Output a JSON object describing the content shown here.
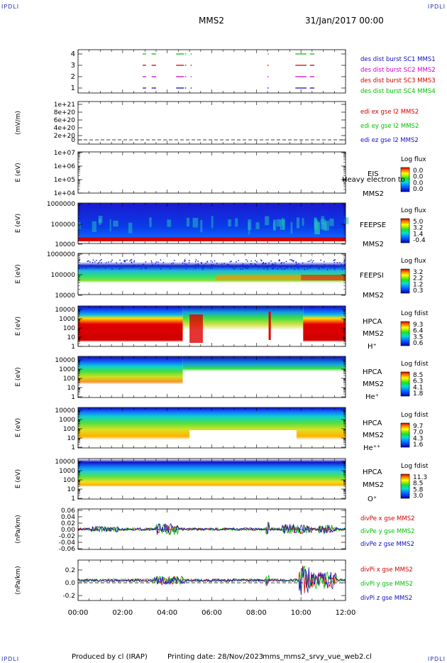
{
  "header": {
    "corner_tl": "IPDLI",
    "corner_tr": "IPDLI",
    "corner_bl": "IPDLI",
    "corner_br": "IPDLI",
    "spacecraft": "MMS2",
    "date": "31/Jan/2017 00:00"
  },
  "footer": {
    "produced_by": "Produced by cl (IRAP)",
    "printing_date": "Printing date: 28/Nov/2023",
    "file": "mms_mms2_srvy_vue_web2.cl"
  },
  "colors": {
    "red": "#d10000",
    "green": "#00c000",
    "blue": "#1010c0",
    "magenta": "#d000d0"
  },
  "chart_data": [
    {
      "type": "line",
      "panel": "burst",
      "yticks": [
        "4",
        "3",
        "2",
        "1"
      ],
      "ylim": [
        0.5,
        4.5
      ],
      "legend": [
        {
          "label": "des dist burst SC1 MMS1",
          "color": "#1010c0"
        },
        {
          "label": "des dist burst SC2 MMS2",
          "color": "#d000d0"
        },
        {
          "label": "des dist burst SC3 MMS3",
          "color": "#d10000"
        },
        {
          "label": "des dist burst SC4 MMS4",
          "color": "#00c000"
        }
      ],
      "segments_hours": [
        [
          2.9,
          3.05
        ],
        [
          3.3,
          3.5
        ],
        [
          4.4,
          4.75
        ],
        [
          4.8,
          4.85
        ],
        [
          5.05,
          5.1
        ],
        [
          8.5,
          8.55
        ],
        [
          9.75,
          10.25
        ],
        [
          10.4,
          10.6
        ]
      ]
    },
    {
      "type": "line",
      "panel": "edi",
      "ylabel": "(mV/m)",
      "yticks": [
        "1e+21",
        "8e+20",
        "6e+20",
        "4e+20",
        "2e+20",
        "0"
      ],
      "legend": [
        {
          "label": "edi ex gse l2 MMS2",
          "color": "#d10000"
        },
        {
          "label": "edi ey gse l2 MMS2",
          "color": "#00c000"
        },
        {
          "label": "edi ez gse l2 MMS2",
          "color": "#1010c0"
        }
      ]
    },
    {
      "type": "heatmap",
      "panel": "eis",
      "ylabel": "E (eV)",
      "yticks": [
        "1e+07",
        "1e+06",
        "1e+05",
        "1e+04"
      ],
      "labels": [
        "EIS",
        "Heavy electron to",
        "MMS2"
      ],
      "cbar_title": "Log flux",
      "cbar_ticks": [
        "0.0",
        "0.0",
        "0.0",
        "0.0"
      ]
    },
    {
      "type": "heatmap",
      "panel": "feepse",
      "ylabel": "E (eV)",
      "yticks": [
        "1000000",
        "100000",
        "10000"
      ],
      "labels": [
        "FEEPSE",
        "MMS2"
      ],
      "cbar_title": "Log flux",
      "cbar_ticks": [
        "5.0",
        "3.2",
        "1.4",
        "-0.4"
      ]
    },
    {
      "type": "heatmap",
      "panel": "feepsi",
      "ylabel": "E (eV)",
      "yticks": [
        "1000000",
        "100000",
        "10000"
      ],
      "labels": [
        "FEEPSI",
        "MMS2"
      ],
      "cbar_title": "Log flux",
      "cbar_ticks": [
        "3.2",
        "2.2",
        "1.2",
        "0.3"
      ]
    },
    {
      "type": "heatmap",
      "panel": "hpca_h",
      "ylabel": "E (eV)",
      "yticks": [
        "10000",
        "1000",
        "100",
        "10",
        "1"
      ],
      "labels": [
        "HPCA",
        "MMS2",
        "H⁺"
      ],
      "cbar_title": "Log fdist",
      "cbar_ticks": [
        "9.3",
        "6.4",
        "3.5",
        "0.6"
      ]
    },
    {
      "type": "heatmap",
      "panel": "hpca_he",
      "ylabel": "E (eV)",
      "yticks": [
        "10000",
        "1000",
        "100",
        "10",
        "1"
      ],
      "labels": [
        "HPCA",
        "MMS2",
        "He⁺"
      ],
      "cbar_title": "Log fdist",
      "cbar_ticks": [
        "8.5",
        "6.3",
        "4.1",
        "1.8"
      ]
    },
    {
      "type": "heatmap",
      "panel": "hpca_hepp",
      "ylabel": "E (eV)",
      "yticks": [
        "10000",
        "1000",
        "100",
        "10",
        "1"
      ],
      "labels": [
        "HPCA",
        "MMS2",
        "He⁺⁺"
      ],
      "cbar_title": "Log fdist",
      "cbar_ticks": [
        "9.7",
        "7.0",
        "4.3",
        "1.6"
      ]
    },
    {
      "type": "heatmap",
      "panel": "hpca_o",
      "ylabel": "E (eV)",
      "yticks": [
        "10000",
        "1000",
        "100",
        "10",
        "1"
      ],
      "labels": [
        "HPCA",
        "MMS2",
        "O⁺"
      ],
      "cbar_title": "Log fdist",
      "cbar_ticks": [
        "11.3",
        "8.5",
        "5.8",
        "3.0"
      ]
    },
    {
      "type": "line",
      "panel": "divpe",
      "ylabel": "(nPa/km)",
      "yticks": [
        "0.06",
        "0.04",
        "0.02",
        "0.00",
        "-0.02",
        "-0.04",
        "-0.06"
      ],
      "ylim": [
        -0.06,
        0.06
      ],
      "legend": [
        {
          "label": "divPe x gse MMS2",
          "color": "#d10000"
        },
        {
          "label": "divPe y gse MMS2",
          "color": "#00c000"
        },
        {
          "label": "divPe z gse MMS2",
          "color": "#1010c0"
        }
      ]
    },
    {
      "type": "line",
      "panel": "divpi",
      "ylabel": "(nPa/km)",
      "yticks": [
        "0.2",
        "0.0",
        "-0.2"
      ],
      "ylim": [
        -0.3,
        0.3
      ],
      "legend": [
        {
          "label": "divPi x gse MMS2",
          "color": "#d10000"
        },
        {
          "label": "divPi y gse MMS2",
          "color": "#00c000"
        },
        {
          "label": "divPi z gse MMS2",
          "color": "#1010c0"
        }
      ]
    }
  ],
  "xaxis": {
    "ticks": [
      "00:00",
      "02:00",
      "04:00",
      "06:00",
      "08:00",
      "10:00",
      "12:00"
    ],
    "xlim": [
      0,
      12
    ]
  }
}
